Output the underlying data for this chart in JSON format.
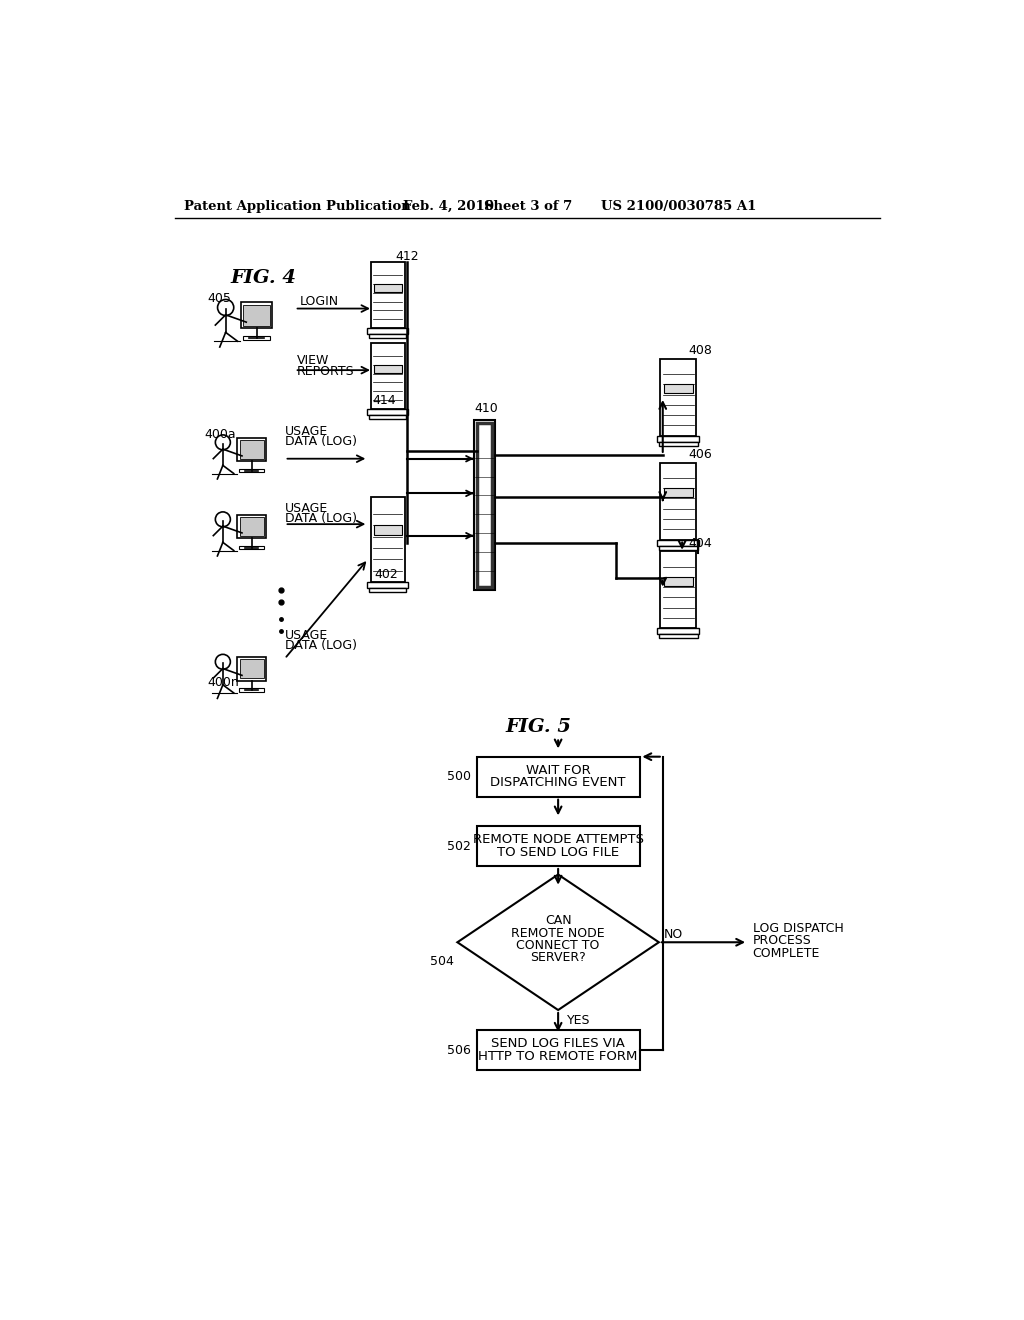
{
  "bg_color": "#ffffff",
  "line_color": "#000000",
  "text_color": "#000000",
  "header1": "Patent Application Publication",
  "header2": "Feb. 4, 2010",
  "header3": "Sheet 3 of 7",
  "header4": "US 2100/0030785 A1",
  "fig4_label": "FIG. 4",
  "fig5_label": "FIG. 5"
}
